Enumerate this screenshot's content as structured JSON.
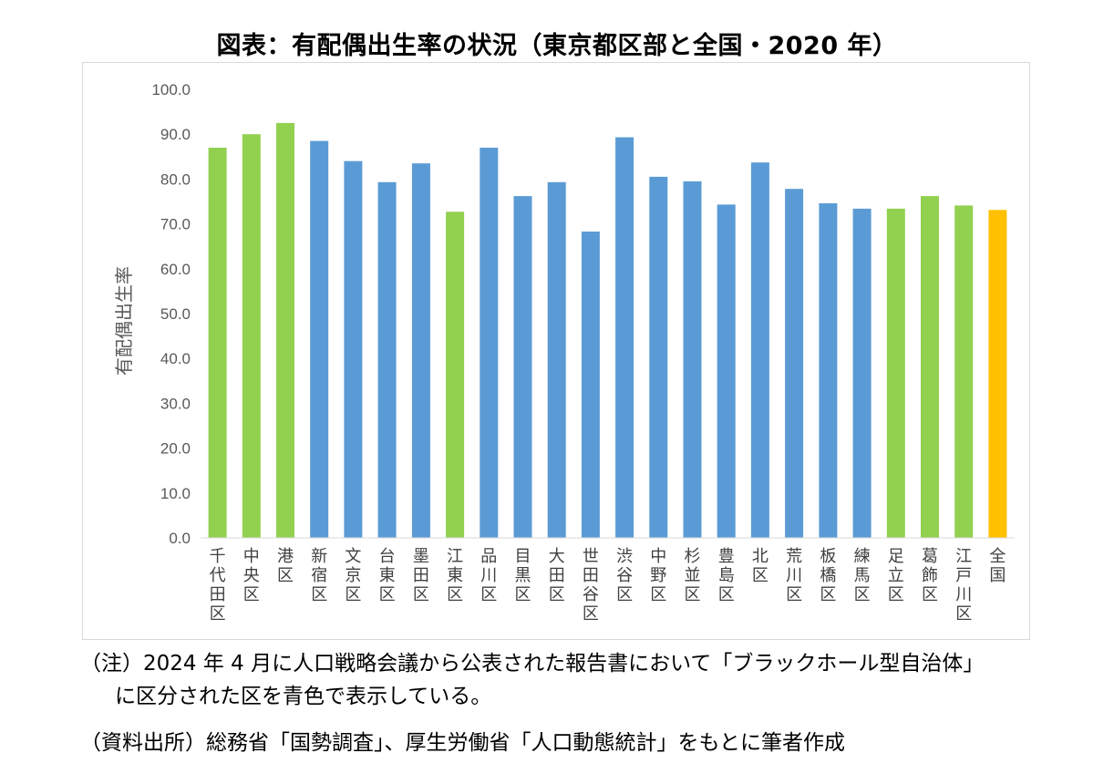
{
  "title": "図表：有配偶出生率の状況（東京都区部と全国・2020 年）",
  "chart_data": {
    "type": "bar",
    "title": "図表：有配偶出生率の状況（東京都区部と全国・2020 年）",
    "ylabel": "有配偶出生率",
    "xlabel": "",
    "ylim": [
      0,
      100
    ],
    "yticks": [
      "0.0",
      "10.0",
      "20.0",
      "30.0",
      "40.0",
      "50.0",
      "60.0",
      "70.0",
      "80.0",
      "90.0",
      "100.0"
    ],
    "grid": false,
    "categories": [
      "千代田区",
      "中央区",
      "港区",
      "新宿区",
      "文京区",
      "台東区",
      "墨田区",
      "江東区",
      "品川区",
      "目黒区",
      "大田区",
      "世田谷区",
      "渋谷区",
      "中野区",
      "杉並区",
      "豊島区",
      "北区",
      "荒川区",
      "板橋区",
      "練馬区",
      "足立区",
      "葛飾区",
      "江戸川区",
      "全国"
    ],
    "values": [
      87.0,
      90.0,
      92.5,
      88.5,
      84.0,
      79.3,
      83.5,
      72.7,
      87.0,
      76.2,
      79.3,
      68.3,
      89.3,
      80.5,
      79.5,
      74.3,
      83.7,
      77.8,
      74.6,
      73.4,
      73.4,
      76.2,
      74.1,
      73.1
    ],
    "colors": [
      "#92d050",
      "#92d050",
      "#92d050",
      "#5b9bd5",
      "#5b9bd5",
      "#5b9bd5",
      "#5b9bd5",
      "#92d050",
      "#5b9bd5",
      "#5b9bd5",
      "#5b9bd5",
      "#5b9bd5",
      "#5b9bd5",
      "#5b9bd5",
      "#5b9bd5",
      "#5b9bd5",
      "#5b9bd5",
      "#5b9bd5",
      "#5b9bd5",
      "#5b9bd5",
      "#92d050",
      "#92d050",
      "#92d050",
      "#ffc000"
    ]
  },
  "notes": {
    "line1": "（注）2024 年 4 月に人口戦略会議から公表された報告書において「ブラックホール型自治体」",
    "line2": "に区分された区を青色で表示している。",
    "source": "（資料出所）総務省「国勢調査」、厚生労働省「人口動態統計」をもとに筆者作成"
  }
}
